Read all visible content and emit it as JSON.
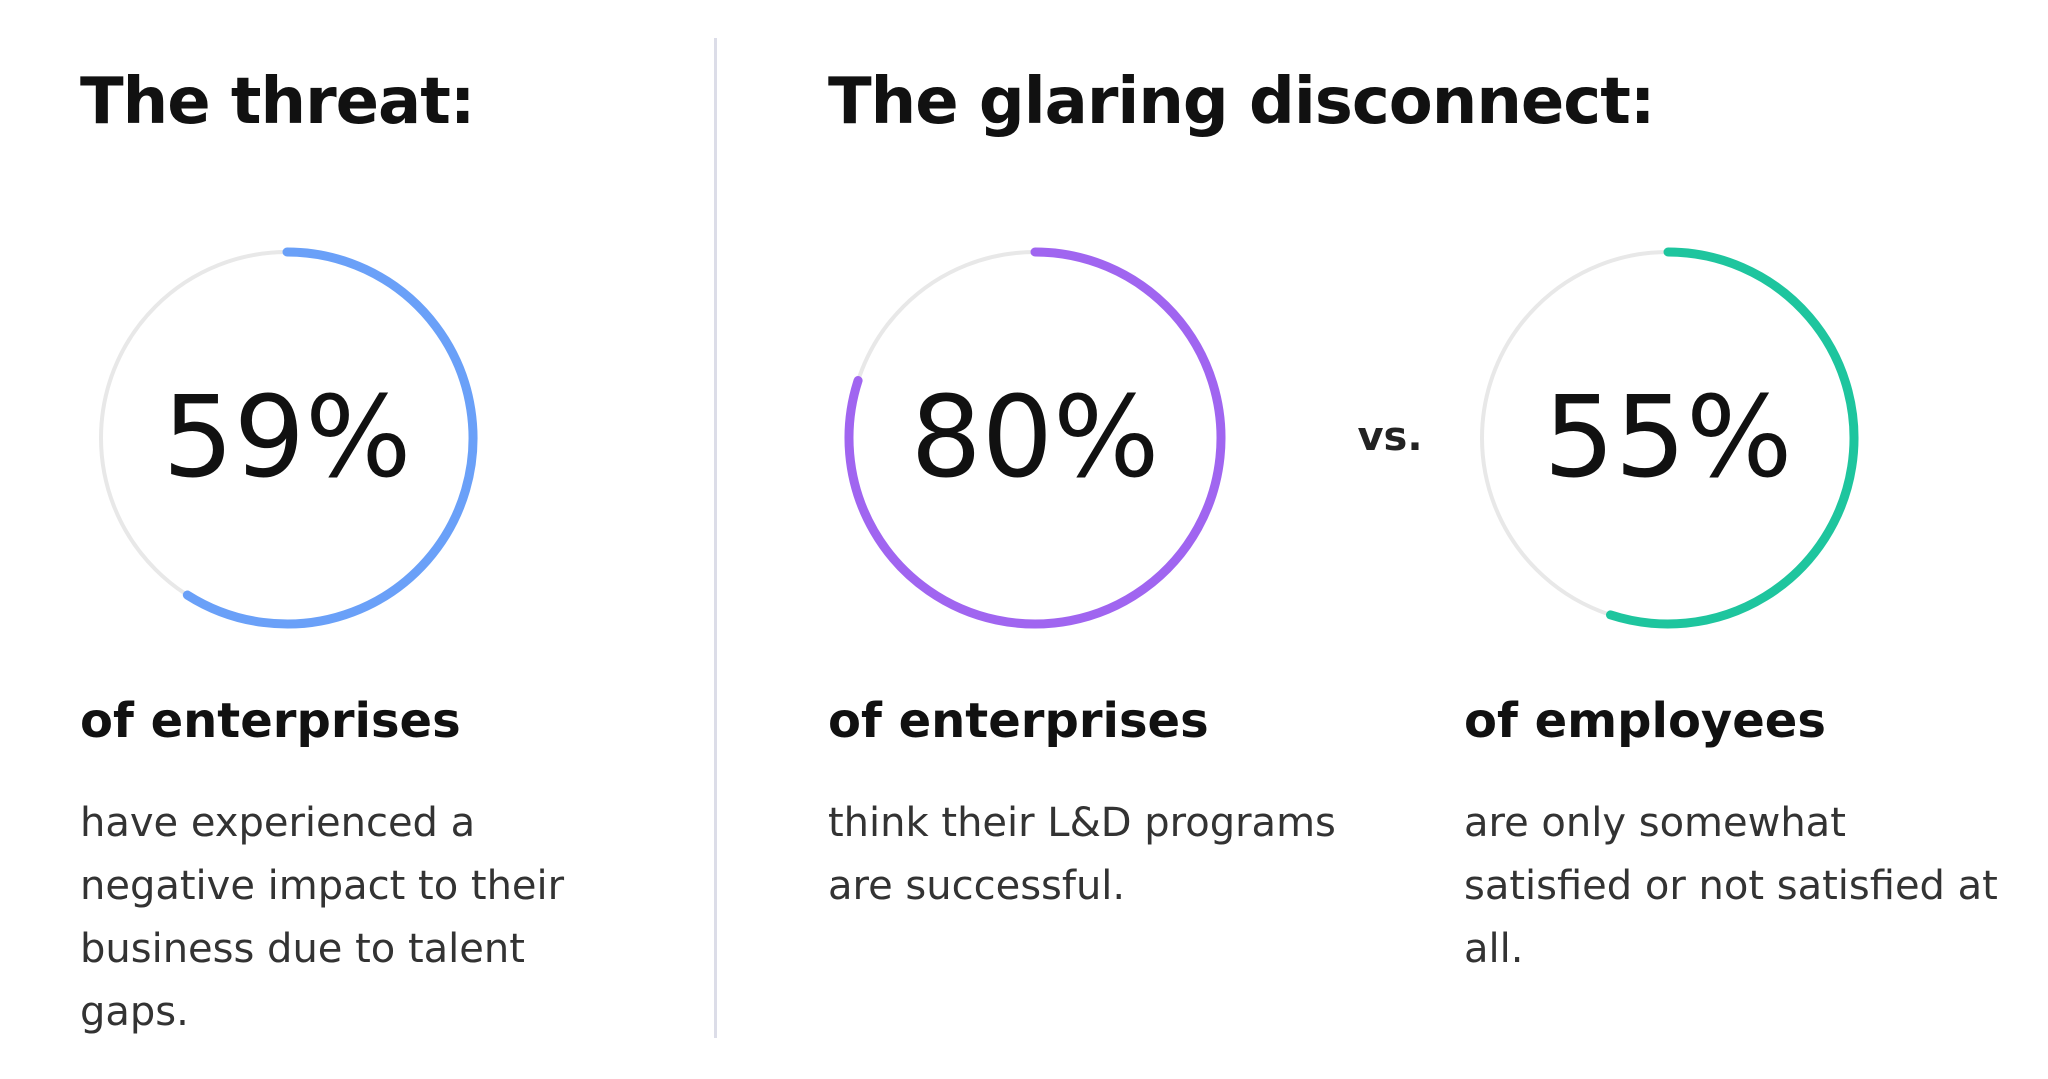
{
  "sections": [
    {
      "heading": "The threat:"
    },
    {
      "heading": "The glaring disconnect:"
    }
  ],
  "vs_label": "vs.",
  "chart_data": [
    {
      "type": "pie",
      "variant": "donut",
      "value": 59,
      "value_label": "59%",
      "color": "#6aa0f8",
      "subhead": "of enterprises",
      "description": "have experienced a negative impact to their business due to talent gaps."
    },
    {
      "type": "pie",
      "variant": "donut",
      "value": 80,
      "value_label": "80%",
      "color": "#a065f0",
      "subhead": "of enterprises",
      "description": "think their L&D programs are successful."
    },
    {
      "type": "pie",
      "variant": "donut",
      "value": 55,
      "value_label": "55%",
      "color": "#1ec59e",
      "subhead": "of employees",
      "description": "are only somewhat satisfied or not satisfied at all."
    }
  ],
  "colors": {
    "track": "#e8e8e8",
    "divider": "#dcdde8"
  }
}
